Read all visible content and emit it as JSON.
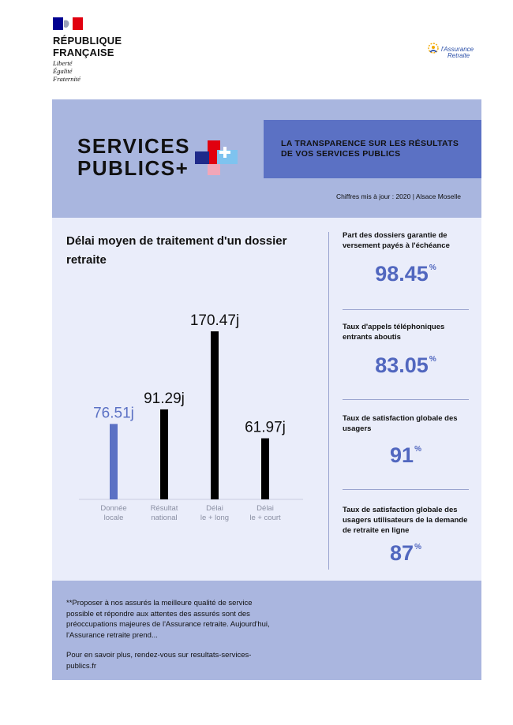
{
  "header": {
    "gov_name": [
      "RÉPUBLIQUE",
      "FRANÇAISE"
    ],
    "motto": [
      "Liberté",
      "Égalité",
      "Fraternité"
    ],
    "partner_logo_text": [
      "l'Assurance",
      "Retraite"
    ]
  },
  "hero": {
    "brand": [
      "SERVICES",
      "PUBLICS+"
    ],
    "tagline": "LA TRANSPARENCE SUR LES RÉSULTATS DE VOS SERVICES PUBLICS",
    "update": "Chiffres mis à jour : 2020 | Alsace Moselle"
  },
  "chart_data": {
    "type": "bar",
    "title": "Délai moyen de traitement d'un dossier retraite",
    "categories": [
      [
        "Donnée",
        "locale"
      ],
      [
        "Résultat",
        "national"
      ],
      [
        "Délai",
        "le + long"
      ],
      [
        "Délai",
        "le + court"
      ]
    ],
    "values": [
      76.51,
      91.29,
      170.47,
      61.97
    ],
    "value_labels": [
      "76.51j",
      "91.29j",
      "170.47j",
      "61.97j"
    ],
    "colors": [
      "#5b71c4",
      "#000000",
      "#000000",
      "#000000"
    ],
    "value_label_colors": [
      "#5b71c4",
      "#111111",
      "#111111",
      "#111111"
    ],
    "ylim": [
      0,
      170.47
    ],
    "grid": false
  },
  "stats": [
    {
      "label": "Part des dossiers garantie de versement payés à l'échéance",
      "value": "98.45",
      "unit": "%"
    },
    {
      "label": "Taux d'appels téléphoniques entrants aboutis",
      "value": "83.05",
      "unit": "%"
    },
    {
      "label": "Taux de satisfaction globale des usagers",
      "value": "91",
      "unit": "%"
    },
    {
      "label": "Taux de satisfaction globale des usagers utilisateurs de la demande de retraite en ligne",
      "value": "87",
      "unit": "%"
    }
  ],
  "footer": {
    "text": "**Proposer à nos assurés la meilleure qualité de service possible et répondre aux attentes des assurés sont des préoccupations majeures de l'Assurance retraite. Aujourd'hui, l'Assurance retraite prend...",
    "link": "Pour en savoir plus, rendez-vous sur resultats-services-publics.fr"
  },
  "colors": {
    "accent": "#5b71c4",
    "hero_bg": "#a9b6df",
    "panel_bg": "#eaedfa",
    "brand_red": "#e1000f"
  }
}
